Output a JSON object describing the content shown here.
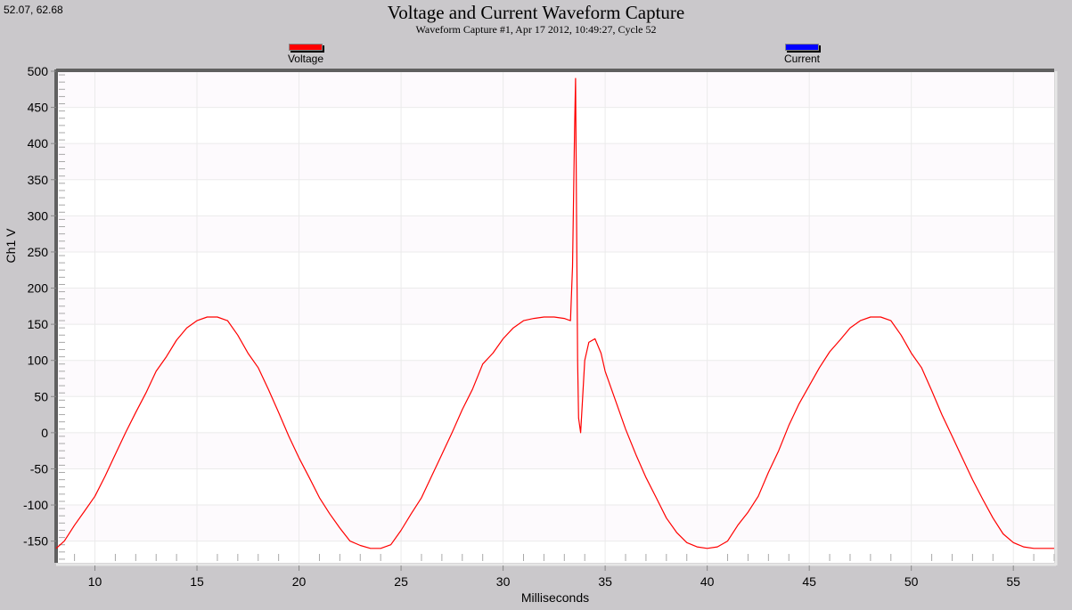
{
  "status": {
    "cursor_coords": "52.07, 62.68"
  },
  "header": {
    "title": "Voltage and Current Waveform Capture",
    "subtitle": "Waveform Capture #1, Apr 17 2012, 10:49:27,  Cycle 52"
  },
  "legend": [
    {
      "label": "Voltage",
      "color": "#ff0000"
    },
    {
      "label": "Current",
      "color": "#0000ff"
    }
  ],
  "colors": {
    "background": "#cac8cb",
    "plot_band_a": "#fdfafd",
    "plot_band_b": "#ffffff",
    "gridline": "#ebebeb",
    "axis": "#606060",
    "voltage": "#ff0000",
    "current": "#0000ff"
  },
  "chart_data": {
    "type": "line",
    "title": "Voltage and Current Waveform Capture",
    "subtitle": "Waveform Capture #1, Apr 17 2012, 10:49:27,  Cycle 52",
    "xlabel": "Milliseconds",
    "ylabel": "Ch1 V",
    "xlim": [
      8.1,
      57.0
    ],
    "ylim": [
      -180,
      500
    ],
    "x_ticks": [
      10,
      15,
      20,
      25,
      30,
      35,
      40,
      45,
      50,
      55
    ],
    "y_ticks": [
      500,
      450,
      400,
      350,
      300,
      250,
      200,
      150,
      100,
      50,
      0,
      -50,
      -100,
      -150
    ],
    "grid": true,
    "legend_position": "top",
    "series": [
      {
        "name": "Voltage",
        "color": "#ff0000",
        "x": [
          8.1,
          8.5,
          9.0,
          9.5,
          10.0,
          10.5,
          11.0,
          11.5,
          12.0,
          12.5,
          13.0,
          13.5,
          14.0,
          14.5,
          15.0,
          15.5,
          16.0,
          16.5,
          17.0,
          17.5,
          18.0,
          18.5,
          19.0,
          19.5,
          20.0,
          20.5,
          21.0,
          21.5,
          22.0,
          22.5,
          23.0,
          23.5,
          24.0,
          24.5,
          25.0,
          25.5,
          26.0,
          26.5,
          27.0,
          27.5,
          28.0,
          28.5,
          29.0,
          29.5,
          30.0,
          30.5,
          31.0,
          31.5,
          32.0,
          32.5,
          33.0,
          33.3,
          33.4,
          33.5,
          33.55,
          33.6,
          33.65,
          33.7,
          33.8,
          33.9,
          34.0,
          34.2,
          34.5,
          34.8,
          35.0,
          35.5,
          36.0,
          36.5,
          37.0,
          37.5,
          38.0,
          38.5,
          39.0,
          39.5,
          40.0,
          40.5,
          41.0,
          41.5,
          42.0,
          42.5,
          43.0,
          43.5,
          44.0,
          44.5,
          45.0,
          45.5,
          46.0,
          46.5,
          47.0,
          47.5,
          48.0,
          48.5,
          49.0,
          49.5,
          50.0,
          50.5,
          51.0,
          51.5,
          52.0,
          52.5,
          53.0,
          53.5,
          54.0,
          54.5,
          55.0,
          55.5,
          56.0,
          56.5,
          57.0
        ],
        "values": [
          -160,
          -150,
          -128,
          -108,
          -88,
          -60,
          -30,
          0,
          28,
          55,
          85,
          105,
          128,
          145,
          155,
          160,
          160,
          155,
          135,
          110,
          90,
          60,
          28,
          -5,
          -35,
          -62,
          -90,
          -112,
          -132,
          -150,
          -156,
          -160,
          -160,
          -155,
          -135,
          -112,
          -90,
          -60,
          -30,
          0,
          32,
          60,
          95,
          110,
          130,
          145,
          155,
          158,
          160,
          160,
          158,
          155,
          230,
          420,
          490,
          300,
          100,
          20,
          0,
          50,
          100,
          125,
          130,
          110,
          85,
          45,
          5,
          -30,
          -62,
          -90,
          -118,
          -138,
          -152,
          -158,
          -160,
          -158,
          -150,
          -128,
          -110,
          -88,
          -55,
          -25,
          10,
          40,
          65,
          90,
          112,
          128,
          145,
          155,
          160,
          160,
          155,
          135,
          110,
          90,
          58,
          25,
          -5,
          -35,
          -65,
          -92,
          -118,
          -140,
          -152,
          -158,
          -160,
          -160,
          -160
        ]
      },
      {
        "name": "Current",
        "color": "#0000ff",
        "x": [],
        "values": []
      }
    ]
  }
}
